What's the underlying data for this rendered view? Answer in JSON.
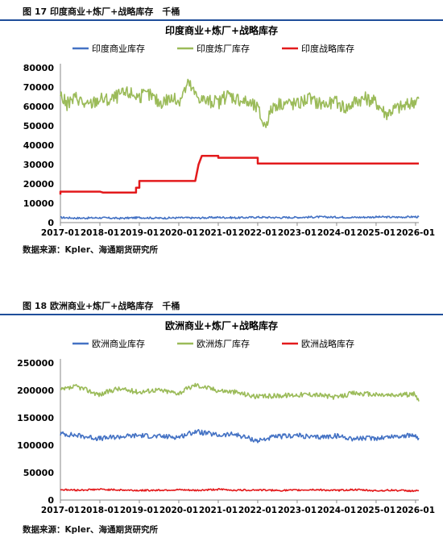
{
  "figure1": {
    "caption": "图 17 印度商业+炼厂+战略库存　千桶",
    "source": "数据来源：Kpler、海通期货研究所"
  },
  "figure2": {
    "caption": "图 18 欧洲商业+炼厂+战略库存　千桶",
    "source": "数据来源：Kpler、海通期货研究所"
  },
  "chart_data": [
    {
      "type": "line",
      "title": "印度商业+炼厂+战略库存",
      "xlabel": "",
      "ylabel": "",
      "ylim": [
        0,
        80000
      ],
      "yticks": [
        0,
        10000,
        20000,
        30000,
        40000,
        50000,
        60000,
        70000,
        80000
      ],
      "xticks": [
        "2017-01",
        "2018-01",
        "2019-01",
        "2020-01",
        "2021-01",
        "2022-01",
        "2023-01",
        "2024-01",
        "2025-01",
        "2026-01"
      ],
      "legend_position": "top-center",
      "grid": false,
      "series": [
        {
          "name": "印度商业库存",
          "color": "#4472c4",
          "points": [
            [
              "2017-01",
              2600
            ],
            [
              "2017-07",
              2300
            ],
            [
              "2018-01",
              2500
            ],
            [
              "2018-07",
              2200
            ],
            [
              "2019-01",
              2600
            ],
            [
              "2019-07",
              2300
            ],
            [
              "2020-01",
              2500
            ],
            [
              "2020-07",
              2400
            ],
            [
              "2021-01",
              2700
            ],
            [
              "2021-07",
              2500
            ],
            [
              "2022-01",
              2800
            ],
            [
              "2022-07",
              2600
            ],
            [
              "2023-01",
              2700
            ],
            [
              "2023-07",
              2900
            ],
            [
              "2024-01",
              2800
            ],
            [
              "2024-07",
              2700
            ],
            [
              "2025-01",
              2900
            ],
            [
              "2025-07",
              2800
            ],
            [
              "2026-01",
              3000
            ],
            [
              "2026-02",
              2900
            ]
          ]
        },
        {
          "name": "印度炼厂库存",
          "color": "#9bbb59",
          "points": [
            [
              "2017-01",
              66000
            ],
            [
              "2017-03",
              61000
            ],
            [
              "2017-06",
              65000
            ],
            [
              "2017-09",
              60000
            ],
            [
              "2018-01",
              64000
            ],
            [
              "2018-04",
              63000
            ],
            [
              "2018-07",
              66000
            ],
            [
              "2018-10",
              67000
            ],
            [
              "2019-01",
              65000
            ],
            [
              "2019-04",
              66000
            ],
            [
              "2019-07",
              62000
            ],
            [
              "2019-10",
              64000
            ],
            [
              "2020-01",
              63000
            ],
            [
              "2020-04",
              72000
            ],
            [
              "2020-06",
              66000
            ],
            [
              "2020-09",
              63000
            ],
            [
              "2021-01",
              62000
            ],
            [
              "2021-04",
              66000
            ],
            [
              "2021-07",
              64000
            ],
            [
              "2021-10",
              62000
            ],
            [
              "2022-01",
              59000
            ],
            [
              "2022-03",
              50000
            ],
            [
              "2022-06",
              61000
            ],
            [
              "2022-09",
              62000
            ],
            [
              "2023-01",
              61000
            ],
            [
              "2023-04",
              64000
            ],
            [
              "2023-07",
              62000
            ],
            [
              "2023-10",
              61000
            ],
            [
              "2024-01",
              62000
            ],
            [
              "2024-04",
              59000
            ],
            [
              "2024-07",
              63000
            ],
            [
              "2024-10",
              64000
            ],
            [
              "2025-01",
              62000
            ],
            [
              "2025-04",
              56000
            ],
            [
              "2025-07",
              59000
            ],
            [
              "2025-10",
              60000
            ],
            [
              "2026-01",
              63000
            ],
            [
              "2026-02",
              64000
            ]
          ]
        },
        {
          "name": "印度战略库存",
          "color": "#e31a1c",
          "points": [
            [
              "2017-01",
              14500
            ],
            [
              "2017-01",
              16000
            ],
            [
              "2018-01",
              16000
            ],
            [
              "2018-02",
              15500
            ],
            [
              "2018-12",
              15500
            ],
            [
              "2018-12",
              18000
            ],
            [
              "2019-01",
              18000
            ],
            [
              "2019-01",
              21500
            ],
            [
              "2020-06",
              21500
            ],
            [
              "2020-07",
              30000
            ],
            [
              "2020-08",
              34500
            ],
            [
              "2021-01",
              34500
            ],
            [
              "2021-01",
              33500
            ],
            [
              "2022-01",
              33500
            ],
            [
              "2022-01",
              30500
            ],
            [
              "2026-02",
              30500
            ]
          ]
        }
      ]
    },
    {
      "type": "line",
      "title": "欧洲商业+炼厂+战略库存",
      "xlabel": "",
      "ylabel": "",
      "ylim": [
        0,
        250000
      ],
      "yticks": [
        0,
        50000,
        100000,
        150000,
        200000,
        250000
      ],
      "xticks": [
        "2017-01",
        "2018-01",
        "2019-01",
        "2020-01",
        "2021-01",
        "2022-01",
        "2023-01",
        "2024-01",
        "2025-01",
        "2026-01"
      ],
      "legend_position": "top-center",
      "grid": false,
      "series": [
        {
          "name": "欧洲商业库存",
          "color": "#4472c4",
          "points": [
            [
              "2017-01",
              121000
            ],
            [
              "2017-06",
              118000
            ],
            [
              "2018-01",
              112000
            ],
            [
              "2018-06",
              115000
            ],
            [
              "2019-01",
              118000
            ],
            [
              "2019-06",
              116000
            ],
            [
              "2020-01",
              115000
            ],
            [
              "2020-06",
              125000
            ],
            [
              "2021-01",
              118000
            ],
            [
              "2021-06",
              120000
            ],
            [
              "2022-01",
              108000
            ],
            [
              "2022-06",
              115000
            ],
            [
              "2023-01",
              118000
            ],
            [
              "2023-06",
              114000
            ],
            [
              "2024-01",
              117000
            ],
            [
              "2024-06",
              112000
            ],
            [
              "2025-01",
              113000
            ],
            [
              "2025-06",
              116000
            ],
            [
              "2026-01",
              118000
            ],
            [
              "2026-02",
              113000
            ]
          ]
        },
        {
          "name": "欧洲炼厂库存",
          "color": "#9bbb59",
          "points": [
            [
              "2017-01",
              200000
            ],
            [
              "2017-06",
              207000
            ],
            [
              "2018-01",
              192000
            ],
            [
              "2018-06",
              203000
            ],
            [
              "2019-01",
              197000
            ],
            [
              "2019-06",
              201000
            ],
            [
              "2020-01",
              195000
            ],
            [
              "2020-06",
              210000
            ],
            [
              "2021-01",
              200000
            ],
            [
              "2021-06",
              197000
            ],
            [
              "2022-01",
              188000
            ],
            [
              "2022-06",
              190000
            ],
            [
              "2023-01",
              192000
            ],
            [
              "2023-06",
              193000
            ],
            [
              "2024-01",
              187000
            ],
            [
              "2024-06",
              195000
            ],
            [
              "2025-01",
              192000
            ],
            [
              "2025-06",
              191000
            ],
            [
              "2026-01",
              193000
            ],
            [
              "2026-02",
              180000
            ]
          ]
        },
        {
          "name": "欧洲战略库存",
          "color": "#e31a1c",
          "points": [
            [
              "2017-01",
              19000
            ],
            [
              "2017-06",
              18000
            ],
            [
              "2018-01",
              19500
            ],
            [
              "2018-06",
              18500
            ],
            [
              "2019-01",
              17500
            ],
            [
              "2019-06",
              18000
            ],
            [
              "2020-01",
              18500
            ],
            [
              "2020-06",
              17500
            ],
            [
              "2021-01",
              19500
            ],
            [
              "2021-06",
              18000
            ],
            [
              "2022-01",
              18500
            ],
            [
              "2022-06",
              17500
            ],
            [
              "2023-01",
              18000
            ],
            [
              "2023-06",
              19000
            ],
            [
              "2024-01",
              17500
            ],
            [
              "2024-06",
              19000
            ],
            [
              "2025-01",
              17000
            ],
            [
              "2025-06",
              18000
            ],
            [
              "2026-01",
              16500
            ],
            [
              "2026-02",
              17500
            ]
          ]
        }
      ]
    }
  ]
}
